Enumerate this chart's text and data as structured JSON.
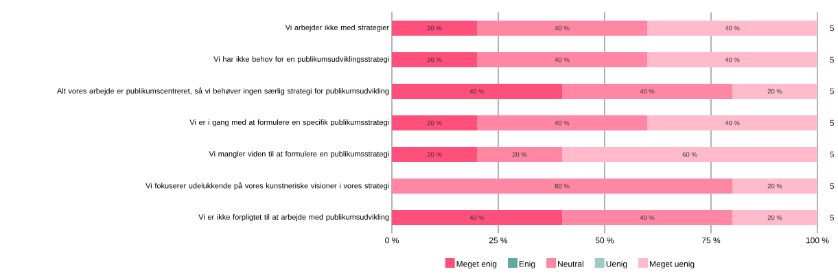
{
  "chart_data": {
    "type": "bar",
    "orientation": "horizontal",
    "stacked": true,
    "categories": [
      "Vi arbejder ikke med strategier",
      "Vi har ikke behov for en publikumsudviklingsstrategi",
      "Alt vores arbejde er publikumscentreret, så vi behøver ingen særlig strategi for publikumsudvikling",
      "Vi er i gang med at formulere en specifik publikumsstrategi",
      "Vi mangler viden til at formulere en publikumsstrategi",
      "Vi fokuserer udelukkende på vores kunstneriske visioner i vores strategi",
      "Vi er ikke forpligtet til at arbejde med publikumsudvikling"
    ],
    "series": [
      {
        "name": "Meget enig",
        "color": "#ff4f7b",
        "values": [
          20,
          20,
          40,
          20,
          20,
          0,
          40
        ],
        "value_labels": [
          "20 %",
          "20 %",
          "40 %",
          "20 %",
          "20 %",
          null,
          "40 %"
        ]
      },
      {
        "name": "Enig",
        "color": "#5fa8a3",
        "values": [
          0,
          0,
          0,
          0,
          0,
          0,
          0
        ],
        "value_labels": [
          null,
          null,
          null,
          null,
          null,
          null,
          null
        ]
      },
      {
        "name": "Neutral",
        "color": "#ff87a3",
        "values": [
          40,
          40,
          40,
          40,
          20,
          80,
          40
        ],
        "value_labels": [
          "40 %",
          "40 %",
          "40 %",
          "40 %",
          "20 %",
          "80 %",
          "40 %"
        ]
      },
      {
        "name": "Uenig",
        "color": "#9ccbc6",
        "values": [
          0,
          0,
          0,
          0,
          0,
          0,
          0
        ],
        "value_labels": [
          null,
          null,
          null,
          null,
          null,
          null,
          null
        ]
      },
      {
        "name": "Meget uenig",
        "color": "#ffbacb",
        "values": [
          40,
          40,
          20,
          40,
          60,
          20,
          20
        ],
        "value_labels": [
          "40 %",
          "40 %",
          "20 %",
          "40 %",
          "60 %",
          "20 %",
          "20 %"
        ]
      }
    ],
    "xlim": [
      0,
      100
    ],
    "xticks": [
      {
        "value": 0,
        "label": "0 %"
      },
      {
        "value": 25,
        "label": "25 %"
      },
      {
        "value": 50,
        "label": "50 %"
      },
      {
        "value": 75,
        "label": "75 %"
      },
      {
        "value": 100,
        "label": "100 %"
      }
    ],
    "grid": "x",
    "legend": "bottom",
    "annotations": [
      "5",
      "5",
      "5",
      "5",
      "5",
      "5",
      "5"
    ]
  }
}
